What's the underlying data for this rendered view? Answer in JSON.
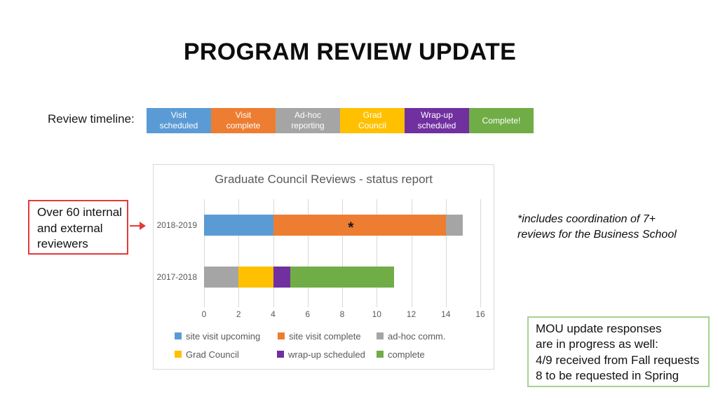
{
  "title": "PROGRAM REVIEW UPDATE",
  "timeline": {
    "label": "Review timeline:",
    "stages": [
      {
        "label": "Visit\nscheduled",
        "color": "#5B9BD5"
      },
      {
        "label": "Visit\ncomplete",
        "color": "#ED7D31"
      },
      {
        "label": "Ad-hoc\nreporting",
        "color": "#A5A5A5"
      },
      {
        "label": "Grad\nCouncil",
        "color": "#FFC000"
      },
      {
        "label": "Wrap-up\nscheduled",
        "color": "#7030A0"
      },
      {
        "label": "Complete!",
        "color": "#70AD47"
      }
    ]
  },
  "annotations": {
    "reviewers_note": "Over 60 internal\nand external\nreviewers",
    "coordination_note": "*includes coordination of 7+\nreviews for the Business School",
    "mou_note": "MOU update responses\nare in progress as well:\n4/9 received from Fall requests\n8 to be requested in Spring",
    "accent_red": "#E23B38",
    "accent_green": "#A9D18E"
  },
  "chart_data": {
    "type": "bar",
    "orientation": "horizontal",
    "stacked": true,
    "title": "Graduate Council Reviews - status report",
    "categories": [
      "2018-2019",
      "2017-2018"
    ],
    "series": [
      {
        "name": "site visit upcoming",
        "color": "#5B9BD5",
        "values": [
          4,
          0
        ]
      },
      {
        "name": "site visit complete",
        "color": "#ED7D31",
        "values": [
          10,
          0
        ]
      },
      {
        "name": "ad-hoc comm.",
        "color": "#A5A5A5",
        "values": [
          1,
          2
        ]
      },
      {
        "name": "Grad Council",
        "color": "#FFC000",
        "values": [
          0,
          2
        ]
      },
      {
        "name": "wrap-up scheduled",
        "color": "#7030A0",
        "values": [
          0,
          1
        ]
      },
      {
        "name": "complete",
        "color": "#70AD47",
        "values": [
          0,
          6
        ]
      }
    ],
    "bar_annotation": {
      "text": "*",
      "x": 8.5,
      "category_index": 0
    },
    "xlim": [
      0,
      16
    ],
    "xticks": [
      0,
      2,
      4,
      6,
      8,
      10,
      12,
      14,
      16
    ],
    "grid": true,
    "legend_position": "bottom",
    "text_color": "#595959",
    "grid_color": "#D9D9D9"
  }
}
